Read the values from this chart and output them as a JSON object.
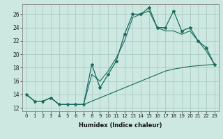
{
  "xlabel": "Humidex (Indice chaleur)",
  "background_color": "#cce8e0",
  "grid_color": "#aaccc4",
  "line_color": "#1a6b5e",
  "x_hours": [
    0,
    1,
    2,
    3,
    4,
    5,
    6,
    7,
    8,
    9,
    10,
    11,
    12,
    13,
    14,
    15,
    16,
    17,
    18,
    19,
    20,
    21,
    22,
    23
  ],
  "line1": [
    14,
    13,
    13,
    13.5,
    12.5,
    12.5,
    12.5,
    12.5,
    18.5,
    15,
    17,
    19,
    23,
    26,
    26,
    27,
    24,
    24,
    26.5,
    23.5,
    24,
    22,
    21,
    18.5
  ],
  "line2": [
    14,
    13,
    13,
    13.5,
    12.5,
    12.5,
    12.5,
    12.5,
    17,
    16,
    17.5,
    19.5,
    22,
    25.5,
    26,
    26.5,
    24,
    23.5,
    23.5,
    23,
    23.5,
    22,
    20.5,
    18.5
  ],
  "line3": [
    14,
    13,
    13,
    13.5,
    12.5,
    12.5,
    12.5,
    12.5,
    13.0,
    13.5,
    14.0,
    14.5,
    15.0,
    15.5,
    16.0,
    16.5,
    17.0,
    17.5,
    17.8,
    18.0,
    18.2,
    18.3,
    18.4,
    18.5
  ],
  "ylim": [
    11.5,
    27.5
  ],
  "xlim": [
    -0.5,
    23.5
  ],
  "yticks": [
    12,
    14,
    16,
    18,
    20,
    22,
    24,
    26
  ],
  "xticks": [
    0,
    1,
    2,
    3,
    4,
    5,
    6,
    7,
    8,
    9,
    10,
    11,
    12,
    13,
    14,
    15,
    16,
    17,
    18,
    19,
    20,
    21,
    22,
    23
  ]
}
